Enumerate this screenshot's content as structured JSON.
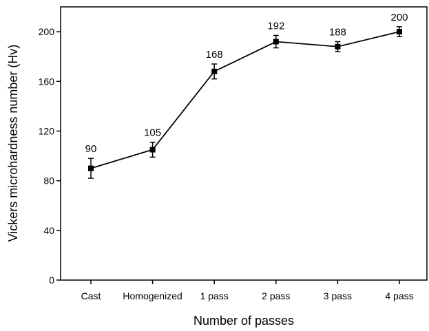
{
  "chart_data": {
    "type": "line",
    "categories": [
      "Cast",
      "Homogenized",
      "1 pass",
      "2 pass",
      "3 pass",
      "4 pass"
    ],
    "series": [
      {
        "values": [
          90,
          105,
          168,
          192,
          188,
          200
        ],
        "error": [
          8,
          6,
          6,
          5,
          4,
          4
        ],
        "data_labels": [
          "90",
          "105",
          "168",
          "192",
          "188",
          "200"
        ]
      }
    ],
    "xlabel": "Number of passes",
    "ylabel": "Vickers microhardness number (Hv)",
    "ylim": [
      0,
      220
    ],
    "yticks": [
      0,
      40,
      80,
      120,
      160,
      200
    ],
    "grid": false,
    "legend": "none",
    "marker": "square",
    "color": "#000000"
  }
}
